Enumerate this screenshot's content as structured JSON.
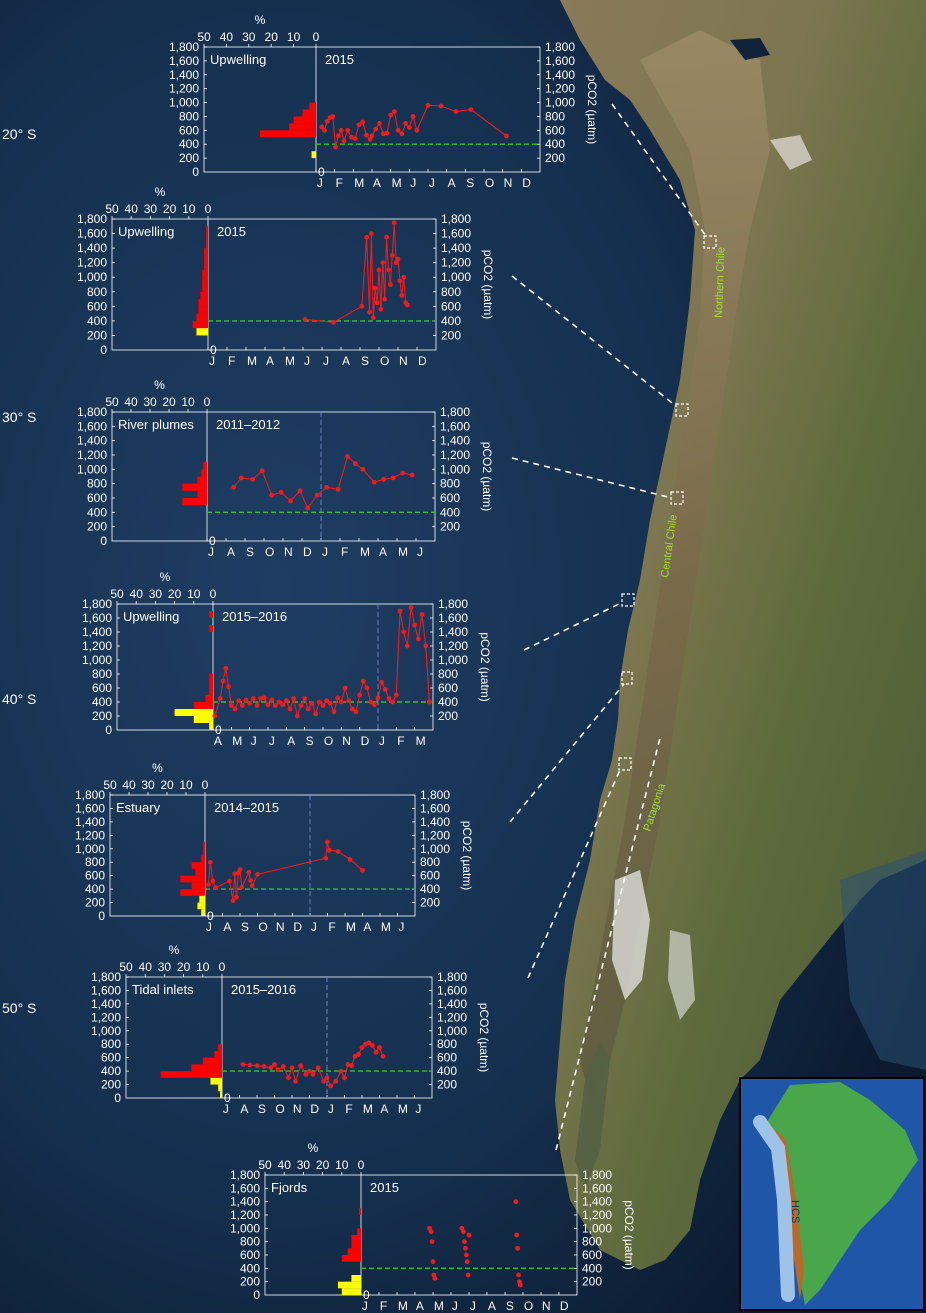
{
  "latitude_labels": [
    "20° S",
    "30° S",
    "40° S",
    "50° S"
  ],
  "region_labels": {
    "north": "Northern Chile",
    "central": "Central Chile",
    "south": "Patagonia"
  },
  "inset_label": "HCS",
  "colors": {
    "series": "#ee1c1c",
    "hist_red": "#ff0000",
    "hist_yellow": "#ffff00",
    "ref": "#2bc42b",
    "vline": "#6f7fbf"
  },
  "chart_data": [
    {
      "type": "line",
      "system": "Upwelling",
      "period": "2015",
      "ylabel": "pCO2 (µatm)",
      "hist_xlabel": "%",
      "hist_ticks": [
        "50",
        "40",
        "30",
        "20",
        "10",
        "0"
      ],
      "y_ticks": [
        "200",
        "400",
        "600",
        "800",
        "1,000",
        "1,200",
        "1,400",
        "1,600",
        "1,800"
      ],
      "ylim": [
        0,
        1800
      ],
      "reference_line": 400,
      "month_labels": [
        "J",
        "F",
        "M",
        "A",
        "M",
        "J",
        "J",
        "A",
        "S",
        "O",
        "N",
        "D"
      ],
      "vline_month": null,
      "x": [
        0.3,
        0.45,
        0.6,
        0.75,
        0.9,
        1.05,
        1.2,
        1.35,
        1.5,
        1.7,
        1.9,
        2.1,
        2.3,
        2.5,
        2.7,
        2.9,
        3.0,
        3.2,
        3.4,
        3.6,
        3.8,
        4.0,
        4.2,
        4.4,
        4.6,
        4.8,
        5.0,
        5.2,
        5.4,
        6.0,
        6.7,
        7.5,
        8.3,
        10.2
      ],
      "y": [
        650,
        600,
        730,
        780,
        800,
        360,
        520,
        600,
        450,
        600,
        500,
        480,
        680,
        720,
        530,
        470,
        520,
        620,
        700,
        550,
        560,
        820,
        870,
        600,
        550,
        700,
        640,
        800,
        600,
        960,
        950,
        870,
        900,
        520
      ],
      "hist_red": [
        {
          "bin": [
            500,
            600
          ],
          "pct": 25
        },
        {
          "bin": [
            600,
            700
          ],
          "pct": 12
        },
        {
          "bin": [
            700,
            800
          ],
          "pct": 10
        },
        {
          "bin": [
            800,
            900
          ],
          "pct": 6
        },
        {
          "bin": [
            900,
            1000
          ],
          "pct": 3
        }
      ],
      "hist_yellow": [
        {
          "bin": [
            200,
            300
          ],
          "pct": 2
        }
      ]
    },
    {
      "type": "line",
      "system": "Upwelling",
      "period": "2015",
      "ylabel": "pCO2 (µatm)",
      "hist_xlabel": "%",
      "hist_ticks": [
        "50",
        "40",
        "30",
        "20",
        "10",
        "0"
      ],
      "y_ticks": [
        "200",
        "400",
        "600",
        "800",
        "1,000",
        "1,200",
        "1,400",
        "1,600",
        "1,800"
      ],
      "ylim": [
        0,
        1800
      ],
      "reference_line": 400,
      "month_labels": [
        "J",
        "F",
        "M",
        "A",
        "M",
        "J",
        "J",
        "A",
        "S",
        "O",
        "N",
        "D"
      ],
      "vline_month": null,
      "x": [
        5.1,
        6.6,
        8.1,
        8.35,
        8.5,
        8.6,
        8.7,
        8.8,
        8.9,
        9.0,
        9.1,
        9.2,
        9.3,
        9.4,
        9.5,
        9.6,
        9.7,
        9.8,
        9.9,
        10.0,
        10.1,
        10.2,
        10.3,
        10.4,
        10.5
      ],
      "y": [
        420,
        380,
        600,
        1550,
        520,
        1600,
        440,
        850,
        650,
        1100,
        560,
        1200,
        700,
        1550,
        1100,
        900,
        1300,
        1750,
        1200,
        1250,
        950,
        750,
        1000,
        650,
        620
      ],
      "hist_red": [
        {
          "bin": [
            300,
            400
          ],
          "pct": 8
        },
        {
          "bin": [
            400,
            500
          ],
          "pct": 6
        },
        {
          "bin": [
            500,
            600
          ],
          "pct": 5
        },
        {
          "bin": [
            600,
            700
          ],
          "pct": 5
        },
        {
          "bin": [
            700,
            800
          ],
          "pct": 4
        },
        {
          "bin": [
            800,
            900
          ],
          "pct": 3
        },
        {
          "bin": [
            900,
            1000
          ],
          "pct": 3
        },
        {
          "bin": [
            1000,
            1100
          ],
          "pct": 3
        },
        {
          "bin": [
            1100,
            1200
          ],
          "pct": 2
        },
        {
          "bin": [
            1200,
            1300
          ],
          "pct": 2
        },
        {
          "bin": [
            1300,
            1400
          ],
          "pct": 2
        },
        {
          "bin": [
            1400,
            1500
          ],
          "pct": 1
        },
        {
          "bin": [
            1500,
            1600
          ],
          "pct": 1
        },
        {
          "bin": [
            1600,
            1700
          ],
          "pct": 1
        }
      ],
      "hist_yellow": [
        {
          "bin": [
            200,
            300
          ],
          "pct": 6
        }
      ]
    },
    {
      "type": "line",
      "system": "River plumes",
      "period": "2011–2012",
      "ylabel": "pCO2 (µatm)",
      "hist_xlabel": "%",
      "hist_ticks": [
        "50",
        "40",
        "30",
        "20",
        "10",
        "0"
      ],
      "y_ticks": [
        "200",
        "400",
        "600",
        "800",
        "1,000",
        "1,200",
        "1,400",
        "1,600",
        "1,800"
      ],
      "ylim": [
        0,
        1800
      ],
      "reference_line": 400,
      "month_labels": [
        "J",
        "A",
        "S",
        "O",
        "N",
        "D",
        "J",
        "F",
        "M",
        "A",
        "M",
        "J"
      ],
      "vline_month": 6,
      "x": [
        1.4,
        1.8,
        2.4,
        2.9,
        3.4,
        3.9,
        4.4,
        4.9,
        5.3,
        5.8,
        6.3,
        6.9,
        7.4,
        7.8,
        8.2,
        8.8,
        9.3,
        9.8,
        10.3,
        10.8
      ],
      "y": [
        750,
        880,
        860,
        980,
        640,
        680,
        560,
        700,
        460,
        640,
        750,
        720,
        1180,
        1080,
        1000,
        820,
        860,
        880,
        950,
        920
      ],
      "hist_red": [
        {
          "bin": [
            500,
            600
          ],
          "pct": 13
        },
        {
          "bin": [
            600,
            700
          ],
          "pct": 5
        },
        {
          "bin": [
            700,
            800
          ],
          "pct": 13
        },
        {
          "bin": [
            800,
            900
          ],
          "pct": 5
        },
        {
          "bin": [
            900,
            1000
          ],
          "pct": 3
        },
        {
          "bin": [
            1000,
            1100
          ],
          "pct": 2
        }
      ],
      "hist_yellow": []
    },
    {
      "type": "line",
      "system": "Upwelling",
      "period": "2015–2016",
      "ylabel": "pCO2 (µatm)",
      "hist_xlabel": "%",
      "hist_ticks": [
        "50",
        "40",
        "30",
        "20",
        "10",
        "0"
      ],
      "y_ticks": [
        "200",
        "400",
        "600",
        "800",
        "1,000",
        "1,200",
        "1,400",
        "1,600",
        "1,800"
      ],
      "ylim": [
        0,
        1800
      ],
      "reference_line": 400,
      "month_labels": [
        "A",
        "M",
        "J",
        "J",
        "A",
        "S",
        "O",
        "N",
        "D",
        "J",
        "F",
        "M"
      ],
      "vline_month": 9,
      "x": [
        0.1,
        0.4,
        0.55,
        0.7,
        0.85,
        1.0,
        1.2,
        1.4,
        1.6,
        1.8,
        2.0,
        2.2,
        2.4,
        2.6,
        2.8,
        3.0,
        3.2,
        3.4,
        3.6,
        3.8,
        4.0,
        4.2,
        4.4,
        4.6,
        4.8,
        5.0,
        5.2,
        5.4,
        5.6,
        5.8,
        6.0,
        6.2,
        6.4,
        6.6,
        6.8,
        7.0,
        7.2,
        7.4,
        7.6,
        7.8,
        8.0,
        8.2,
        8.4,
        8.6,
        8.8,
        9.0,
        9.2,
        9.4,
        9.6,
        9.8,
        10.0,
        10.2,
        10.4,
        10.6,
        10.8,
        11.0,
        11.2,
        11.4,
        11.6,
        11.8
      ],
      "y": [
        200,
        450,
        700,
        880,
        620,
        350,
        300,
        420,
        350,
        430,
        380,
        450,
        350,
        450,
        460,
        360,
        430,
        350,
        400,
        360,
        420,
        300,
        450,
        200,
        350,
        450,
        300,
        380,
        230,
        400,
        350,
        420,
        380,
        260,
        460,
        400,
        600,
        420,
        300,
        260,
        500,
        700,
        600,
        400,
        360,
        460,
        680,
        580,
        450,
        400,
        500,
        1700,
        1400,
        1200,
        1750,
        1500,
        1300,
        1650,
        1200,
        400
      ],
      "hist_red": [
        {
          "bin": [
            300,
            400
          ],
          "pct": 10
        },
        {
          "bin": [
            400,
            500
          ],
          "pct": 4
        },
        {
          "bin": [
            500,
            600
          ],
          "pct": 2
        },
        {
          "bin": [
            600,
            700
          ],
          "pct": 2
        },
        {
          "bin": [
            700,
            800
          ],
          "pct": 2
        },
        {
          "bin": [
            1400,
            1500
          ],
          "pct": 2
        },
        {
          "bin": [
            1600,
            1700
          ],
          "pct": 2
        }
      ],
      "hist_yellow": [
        {
          "bin": [
            0,
            100
          ],
          "pct": 2
        },
        {
          "bin": [
            100,
            200
          ],
          "pct": 10
        },
        {
          "bin": [
            200,
            300
          ],
          "pct": 20
        }
      ]
    },
    {
      "type": "line",
      "system": "Estuary",
      "period": "2014–2015",
      "ylabel": "pCO2 (µatm)",
      "hist_xlabel": "%",
      "hist_ticks": [
        "50",
        "40",
        "30",
        "20",
        "10",
        "0"
      ],
      "y_ticks": [
        "200",
        "400",
        "600",
        "800",
        "1,000",
        "1,200",
        "1,400",
        "1,600",
        "1,800"
      ],
      "ylim": [
        0,
        1800
      ],
      "reference_line": 400,
      "month_labels": [
        "J",
        "A",
        "S",
        "O",
        "N",
        "D",
        "J",
        "F",
        "M",
        "A",
        "M",
        "J"
      ],
      "vline_month": 6,
      "x": [
        0.2,
        0.3,
        0.45,
        0.6,
        1.4,
        1.6,
        1.7,
        1.8,
        1.9,
        2.0,
        2.1,
        2.5,
        2.6,
        2.7,
        3.0,
        6.9,
        7.0,
        7.1,
        7.6,
        8.3,
        9.0
      ],
      "y": [
        470,
        800,
        520,
        420,
        520,
        230,
        630,
        280,
        640,
        690,
        430,
        650,
        530,
        450,
        620,
        860,
        1100,
        980,
        960,
        840,
        680
      ],
      "hist_red": [
        {
          "bin": [
            300,
            400
          ],
          "pct": 13
        },
        {
          "bin": [
            400,
            500
          ],
          "pct": 7
        },
        {
          "bin": [
            500,
            600
          ],
          "pct": 13
        },
        {
          "bin": [
            600,
            700
          ],
          "pct": 5
        },
        {
          "bin": [
            700,
            800
          ],
          "pct": 7
        },
        {
          "bin": [
            800,
            900
          ],
          "pct": 2
        },
        {
          "bin": [
            900,
            1000
          ],
          "pct": 1
        },
        {
          "bin": [
            1000,
            1100
          ],
          "pct": 1
        }
      ],
      "hist_yellow": [
        {
          "bin": [
            0,
            100
          ],
          "pct": 2
        },
        {
          "bin": [
            100,
            200
          ],
          "pct": 4
        },
        {
          "bin": [
            200,
            300
          ],
          "pct": 3
        }
      ]
    },
    {
      "type": "line",
      "system": "Tidal inlets",
      "period": "2015–2016",
      "ylabel": "pCO2 (µatm)",
      "hist_xlabel": "%",
      "hist_ticks": [
        "50",
        "40",
        "30",
        "20",
        "10",
        "0"
      ],
      "y_ticks": [
        "200",
        "400",
        "600",
        "800",
        "1,000",
        "1,200",
        "1,400",
        "1,600",
        "1,800"
      ],
      "ylim": [
        0,
        1800
      ],
      "reference_line": 400,
      "month_labels": [
        "J",
        "A",
        "S",
        "O",
        "N",
        "D",
        "J",
        "F",
        "M",
        "A",
        "M",
        "J"
      ],
      "vline_month": 6,
      "x": [
        1.2,
        1.6,
        2.0,
        2.4,
        2.8,
        3.0,
        3.2,
        3.5,
        3.8,
        4.0,
        4.2,
        4.5,
        4.8,
        5.0,
        5.2,
        5.5,
        5.8,
        6.0,
        6.2,
        6.5,
        6.8,
        7.0,
        7.2,
        7.4,
        7.6,
        7.8,
        8.0,
        8.2,
        8.4,
        8.6,
        8.8,
        9.0,
        9.2
      ],
      "y": [
        500,
        490,
        480,
        470,
        450,
        500,
        420,
        470,
        300,
        450,
        250,
        480,
        350,
        400,
        350,
        450,
        250,
        300,
        180,
        250,
        400,
        300,
        500,
        480,
        620,
        650,
        750,
        800,
        820,
        780,
        680,
        750,
        620
      ],
      "hist_red": [
        {
          "bin": [
            300,
            400
          ],
          "pct": 32
        },
        {
          "bin": [
            400,
            500
          ],
          "pct": 16
        },
        {
          "bin": [
            500,
            600
          ],
          "pct": 10
        },
        {
          "bin": [
            600,
            700
          ],
          "pct": 4
        },
        {
          "bin": [
            700,
            800
          ],
          "pct": 2
        }
      ],
      "hist_yellow": [
        {
          "bin": [
            0,
            100
          ],
          "pct": 1
        },
        {
          "bin": [
            100,
            200
          ],
          "pct": 2
        },
        {
          "bin": [
            200,
            300
          ],
          "pct": 6
        }
      ]
    },
    {
      "type": "scatter",
      "system": "Fjords",
      "period": "2015",
      "ylabel": "pCO2 (µatm)",
      "hist_xlabel": "%",
      "hist_ticks": [
        "50",
        "40",
        "30",
        "20",
        "10",
        "0"
      ],
      "y_ticks": [
        "200",
        "400",
        "600",
        "800",
        "1,000",
        "1,200",
        "1,400",
        "1,600",
        "1,800"
      ],
      "ylim": [
        0,
        1800
      ],
      "reference_line": 400,
      "month_labels": [
        "J",
        "F",
        "M",
        "A",
        "M",
        "J",
        "J",
        "A",
        "S",
        "O",
        "N",
        "D"
      ],
      "vline_month": null,
      "x": [
        3.8,
        3.9,
        3.95,
        4.0,
        4.05,
        4.1,
        5.6,
        5.7,
        5.75,
        5.8,
        5.85,
        5.9,
        5.95,
        6.0,
        8.6,
        8.65,
        8.7,
        8.75,
        8.8,
        8.85
      ],
      "y": [
        1000,
        950,
        800,
        500,
        300,
        250,
        1000,
        950,
        800,
        700,
        600,
        500,
        300,
        900,
        1400,
        900,
        700,
        300,
        200,
        150
      ],
      "hist_red": [
        {
          "bin": [
            500,
            600
          ],
          "pct": 10
        },
        {
          "bin": [
            600,
            700
          ],
          "pct": 7
        },
        {
          "bin": [
            700,
            800
          ],
          "pct": 5
        },
        {
          "bin": [
            800,
            900
          ],
          "pct": 5
        },
        {
          "bin": [
            900,
            1000
          ],
          "pct": 2
        },
        {
          "bin": [
            1200,
            1300
          ],
          "pct": 1
        }
      ],
      "hist_yellow": [
        {
          "bin": [
            0,
            100
          ],
          "pct": 10
        },
        {
          "bin": [
            100,
            200
          ],
          "pct": 12
        },
        {
          "bin": [
            200,
            300
          ],
          "pct": 5
        }
      ]
    }
  ]
}
